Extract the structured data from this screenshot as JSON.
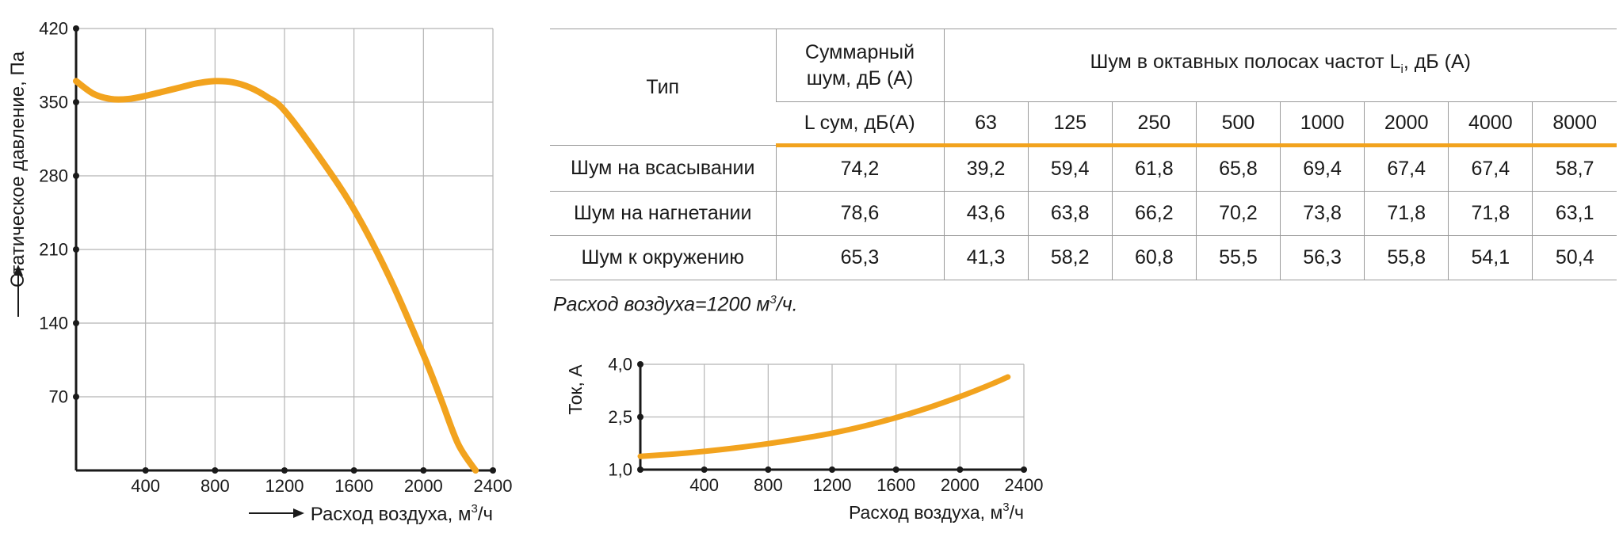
{
  "pressure_chart": {
    "ylabel": "Статическое давление, Па",
    "xlabel_main": "Расход воздуха, м",
    "xlabel_sup": "3",
    "xlabel_tail": "/ч",
    "y_ticks": [
      "70",
      "140",
      "210",
      "280",
      "350",
      "420"
    ],
    "x_ticks": [
      "400",
      "800",
      "1200",
      "1600",
      "2000",
      "2400"
    ]
  },
  "current_chart": {
    "ylabel": "Ток, А",
    "xlabel_main": "Расход воздуха, м",
    "xlabel_sup": "3",
    "xlabel_tail": "/ч",
    "y_ticks": [
      "1,0",
      "2,5",
      "4,0"
    ],
    "x_ticks": [
      "400",
      "800",
      "1200",
      "1600",
      "2000",
      "2400"
    ]
  },
  "chart_data": [
    {
      "type": "line",
      "xlabel": "Расход воздуха, м³/ч",
      "ylabel": "Статическое давление, Па",
      "xlim": [
        0,
        2400
      ],
      "ylim": [
        0,
        420
      ],
      "grid": true,
      "color": "#f2a31e",
      "x": [
        0,
        100,
        200,
        300,
        400,
        500,
        600,
        700,
        800,
        900,
        1000,
        1100,
        1200,
        1400,
        1600,
        1800,
        2000,
        2100,
        2200,
        2300
      ],
      "values": [
        370,
        358,
        353,
        353,
        356,
        360,
        364,
        368,
        370,
        369,
        364,
        355,
        342,
        298,
        248,
        185,
        110,
        68,
        25,
        0
      ]
    },
    {
      "type": "line",
      "xlabel": "Расход воздуха, м³/ч",
      "ylabel": "Ток, А",
      "xlim": [
        0,
        2400
      ],
      "ylim": [
        1.0,
        4.0
      ],
      "grid": true,
      "color": "#f2a31e",
      "x": [
        0,
        200,
        400,
        600,
        800,
        1000,
        1200,
        1400,
        1600,
        1800,
        2000,
        2200,
        2300
      ],
      "values": [
        1.38,
        1.44,
        1.52,
        1.62,
        1.74,
        1.88,
        2.04,
        2.24,
        2.48,
        2.76,
        3.08,
        3.44,
        3.64
      ]
    }
  ],
  "table": {
    "col_type": "Тип",
    "col_total_l1": "Суммарный",
    "col_total_l2": "шум, дБ (А)",
    "col_octave_main": "Шум в октавных полосах частот L",
    "col_octave_sub": "i",
    "col_octave_tail": ", дБ (А)",
    "col_lsum": "L сум, дБ(А)",
    "freqs": [
      "63",
      "125",
      "250",
      "500",
      "1000",
      "2000",
      "4000",
      "8000"
    ],
    "rows": [
      {
        "name": "Шум на всасывании",
        "total": "74,2",
        "values": [
          "39,2",
          "59,4",
          "61,8",
          "65,8",
          "69,4",
          "67,4",
          "67,4",
          "58,7"
        ]
      },
      {
        "name": "Шум на нагнетании",
        "total": "78,6",
        "values": [
          "43,6",
          "63,8",
          "66,2",
          "70,2",
          "73,8",
          "71,8",
          "71,8",
          "63,1"
        ]
      },
      {
        "name": "Шум к окружению",
        "total": "65,3",
        "values": [
          "41,3",
          "58,2",
          "60,8",
          "55,5",
          "56,3",
          "55,8",
          "54,1",
          "50,4"
        ]
      }
    ]
  },
  "note": {
    "main": "Расход воздуха=1200 м",
    "sup": "3",
    "tail": "/ч."
  }
}
